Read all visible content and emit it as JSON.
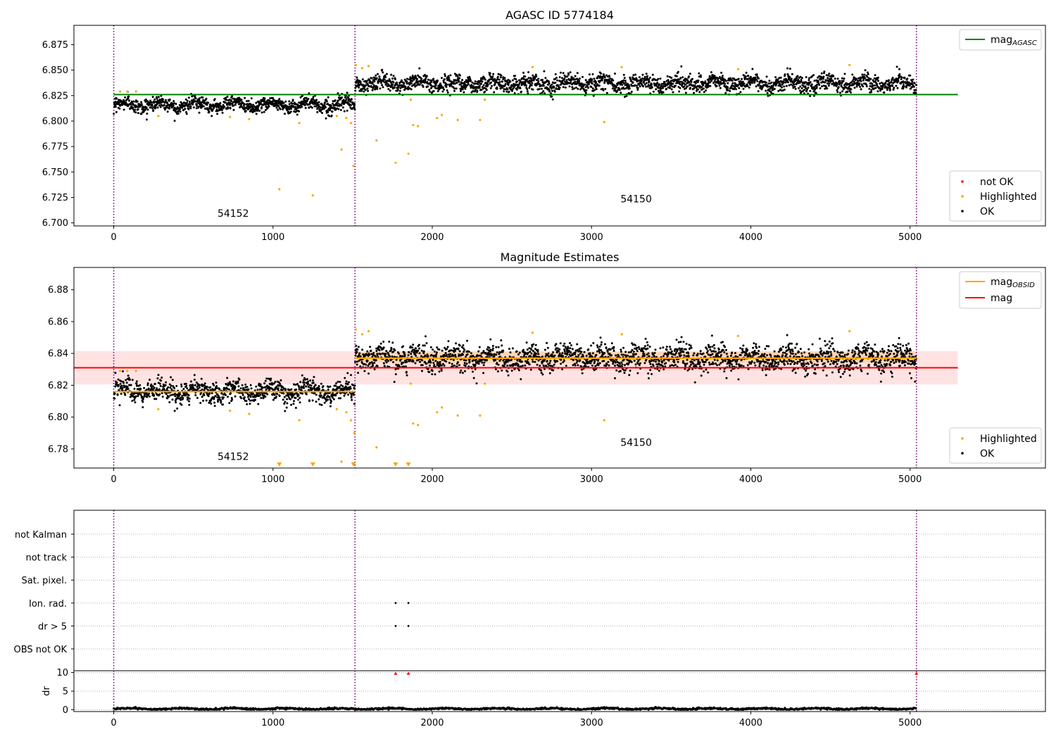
{
  "figure": {
    "colors": {
      "ok": "#000000",
      "highlighted": "#ffa500",
      "not_ok": "#ff0000",
      "mag_agasc": "#008000",
      "mag_obsid": "#ffa500",
      "mag": "#ff0000",
      "band": "#ffcccc",
      "obs_divider": "#800080"
    }
  },
  "chart_data": [
    {
      "type": "scatter",
      "title": "AGASC ID 5774184",
      "xlim": [
        -250,
        5850
      ],
      "ylim": [
        6.697,
        6.894
      ],
      "xticks": [
        0,
        1000,
        2000,
        3000,
        4000,
        5000
      ],
      "yticks": [
        6.7,
        6.725,
        6.75,
        6.775,
        6.8,
        6.825,
        6.85,
        6.875
      ],
      "ytick_labels": [
        "6.700",
        "6.725",
        "6.750",
        "6.775",
        "6.800",
        "6.825",
        "6.850",
        "6.875"
      ],
      "obs_boundaries": [
        0,
        1515,
        5040
      ],
      "obs_labels": [
        {
          "text": "54152",
          "x": 750,
          "y": 6.706
        },
        {
          "text": "54150",
          "x": 3280,
          "y": 6.72
        }
      ],
      "ok_segments": [
        {
          "x0": 0,
          "x1": 1515,
          "n": 950,
          "mean": 6.816,
          "sd": 0.0032
        },
        {
          "x0": 1515,
          "x1": 5040,
          "n": 2100,
          "mean": 6.837,
          "sd": 0.004
        }
      ],
      "highlighted_points": [
        [
          40,
          6.829
        ],
        [
          85,
          6.829
        ],
        [
          140,
          6.829
        ],
        [
          280,
          6.805
        ],
        [
          730,
          6.804
        ],
        [
          850,
          6.802
        ],
        [
          1040,
          6.733
        ],
        [
          1165,
          6.798
        ],
        [
          1250,
          6.727
        ],
        [
          1400,
          6.805
        ],
        [
          1430,
          6.772
        ],
        [
          1460,
          6.803
        ],
        [
          1490,
          6.798
        ],
        [
          1505,
          6.756
        ],
        [
          1520,
          6.855
        ],
        [
          1560,
          6.852
        ],
        [
          1600,
          6.854
        ],
        [
          1650,
          6.781
        ],
        [
          1770,
          6.759
        ],
        [
          1850,
          6.768
        ],
        [
          1865,
          6.821
        ],
        [
          1880,
          6.796
        ],
        [
          1910,
          6.795
        ],
        [
          2030,
          6.803
        ],
        [
          2060,
          6.806
        ],
        [
          2160,
          6.801
        ],
        [
          2300,
          6.801
        ],
        [
          2330,
          6.821
        ],
        [
          2630,
          6.853
        ],
        [
          3080,
          6.799
        ],
        [
          3190,
          6.853
        ],
        [
          3920,
          6.851
        ],
        [
          4620,
          6.855
        ]
      ],
      "not_ok_points": [],
      "lines": [
        {
          "name": "mag<sub>AGASC</sub>",
          "y": 6.826,
          "x0": 0,
          "x1": 5300
        }
      ],
      "legend_lines": [
        {
          "label": "mag",
          "sub": "AGASC"
        }
      ],
      "legend_points": [
        "not OK",
        "Highlighted",
        "OK"
      ]
    },
    {
      "type": "scatter",
      "title": "Magnitude Estimates",
      "xlim": [
        -250,
        5850
      ],
      "ylim": [
        6.768,
        6.894
      ],
      "xticks": [
        0,
        1000,
        2000,
        3000,
        4000,
        5000
      ],
      "yticks": [
        6.78,
        6.8,
        6.82,
        6.84,
        6.86,
        6.88
      ],
      "ytick_labels": [
        "6.78",
        "6.80",
        "6.82",
        "6.84",
        "6.86",
        "6.88"
      ],
      "obs_boundaries": [
        0,
        1515,
        5040
      ],
      "obs_labels": [
        {
          "text": "54152",
          "x": 750,
          "y": 6.773
        },
        {
          "text": "54150",
          "x": 3280,
          "y": 6.782
        }
      ],
      "band": {
        "y0": 6.8205,
        "y1": 6.8415,
        "x0": -250,
        "x1": 5300
      },
      "obsid_band": {
        "y0": 6.834,
        "y1": 6.841,
        "x0": 1515,
        "x1": 5040
      },
      "obsid_lines": [
        {
          "x0": 0,
          "x1": 1515,
          "y": 6.816
        },
        {
          "x0": 1515,
          "x1": 5040,
          "y": 6.837
        }
      ],
      "mag_line": {
        "y": 6.831,
        "x0": -250,
        "x1": 5300
      },
      "ok_segments": [
        {
          "x0": 0,
          "x1": 1515,
          "n": 950,
          "mean": 6.816,
          "sd": 0.0032
        },
        {
          "x0": 1515,
          "x1": 5040,
          "n": 2100,
          "mean": 6.837,
          "sd": 0.004
        }
      ],
      "highlighted_points": [
        [
          40,
          6.829
        ],
        [
          85,
          6.829
        ],
        [
          140,
          6.829
        ],
        [
          280,
          6.805
        ],
        [
          730,
          6.804
        ],
        [
          850,
          6.802
        ],
        [
          1165,
          6.798
        ],
        [
          1400,
          6.805
        ],
        [
          1430,
          6.772
        ],
        [
          1460,
          6.803
        ],
        [
          1490,
          6.798
        ],
        [
          1510,
          6.79
        ],
        [
          1520,
          6.855
        ],
        [
          1560,
          6.852
        ],
        [
          1600,
          6.854
        ],
        [
          1650,
          6.781
        ],
        [
          1865,
          6.821
        ],
        [
          1880,
          6.796
        ],
        [
          1910,
          6.795
        ],
        [
          2030,
          6.803
        ],
        [
          2060,
          6.806
        ],
        [
          2160,
          6.801
        ],
        [
          2300,
          6.801
        ],
        [
          2330,
          6.821
        ],
        [
          2630,
          6.853
        ],
        [
          3080,
          6.798
        ],
        [
          3190,
          6.852
        ],
        [
          3920,
          6.851
        ],
        [
          4620,
          6.854
        ]
      ],
      "offscale_low": [
        1040,
        1250,
        1505,
        1770,
        1850
      ],
      "legend_lines": [
        {
          "label": "mag",
          "sub": "OBSID",
          "color_key": "mag_obsid"
        },
        {
          "label": "mag",
          "sub": "",
          "color_key": "mag"
        }
      ],
      "legend_points": [
        "Highlighted",
        "OK"
      ]
    },
    {
      "type": "scatter",
      "title": "",
      "xlim": [
        -250,
        5850
      ],
      "categories": [
        "not Kalman",
        "not track",
        "Sat. pixel.",
        "Ion. rad.",
        "dr > 5",
        "OBS not OK"
      ],
      "flags": [
        {
          "category": "Ion. rad.",
          "x": [
            1770,
            1850
          ]
        },
        {
          "category": "dr > 5",
          "x": [
            1770,
            1850
          ]
        }
      ],
      "obs_boundaries": [
        0,
        1515,
        5040
      ]
    },
    {
      "type": "scatter",
      "ylabel": "dr",
      "xlim": [
        -250,
        5850
      ],
      "ylim": [
        -0.5,
        10.5
      ],
      "xticks": [
        0,
        1000,
        2000,
        3000,
        4000,
        5000
      ],
      "yticks": [
        0,
        5,
        10
      ],
      "ytick_labels": [
        "0",
        "5",
        "10"
      ],
      "dr_points_high": [
        [
          1770,
          9.8
        ],
        [
          1850,
          9.8
        ],
        [
          5040,
          9.8
        ]
      ],
      "dr_baseline": {
        "mean": 0.25,
        "sd": 0.12,
        "n": 1800
      },
      "obs_boundaries": [
        0,
        1515,
        5040
      ]
    }
  ]
}
